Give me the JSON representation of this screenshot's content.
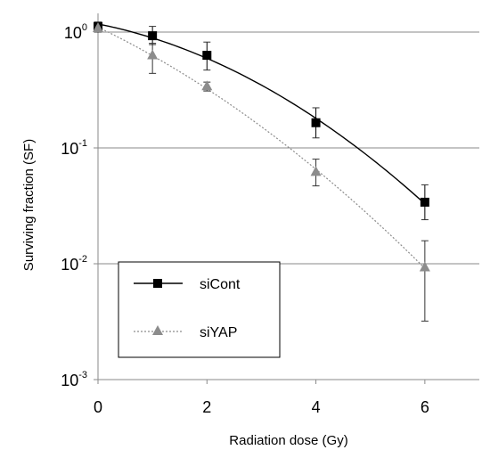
{
  "chart_data": {
    "type": "line",
    "title": "",
    "xlabel": "Radiation dose (Gy)",
    "ylabel": "Surviving fraction (SF)",
    "xlim": [
      0,
      7
    ],
    "ylim": [
      0.001,
      1.5
    ],
    "yscale": "log",
    "grid": "horizontal",
    "legend_position": "bottom-left",
    "x_ticks": [
      {
        "value": 0,
        "label": "0"
      },
      {
        "value": 2,
        "label": "2"
      },
      {
        "value": 4,
        "label": "4"
      },
      {
        "value": 6,
        "label": "6"
      }
    ],
    "y_ticks": [
      {
        "value": 1,
        "base": "10",
        "exp": "0"
      },
      {
        "value": 0.1,
        "base": "10",
        "exp": "-1"
      },
      {
        "value": 0.01,
        "base": "10",
        "exp": "-2"
      },
      {
        "value": 0.001,
        "base": "10",
        "exp": "-3"
      }
    ],
    "series": [
      {
        "name": "siCont",
        "color": "#000000",
        "marker": "square",
        "line": "solid",
        "x": [
          0,
          1,
          2,
          4,
          6
        ],
        "y": [
          1.12,
          0.93,
          0.63,
          0.165,
          0.034
        ],
        "err_low": [
          1.03,
          0.78,
          0.47,
          0.122,
          0.024
        ],
        "err_high": [
          1.22,
          1.12,
          0.82,
          0.222,
          0.048
        ]
      },
      {
        "name": "siYAP",
        "color": "#8c8c8c",
        "marker": "triangle",
        "line": "dotted",
        "x": [
          0,
          1,
          2,
          4,
          6
        ],
        "y": [
          1.08,
          0.63,
          0.34,
          0.062,
          0.0093
        ],
        "err_low": [
          1.0,
          0.44,
          0.31,
          0.047,
          0.0032
        ],
        "err_high": [
          1.18,
          0.8,
          0.37,
          0.08,
          0.0158
        ]
      }
    ]
  }
}
